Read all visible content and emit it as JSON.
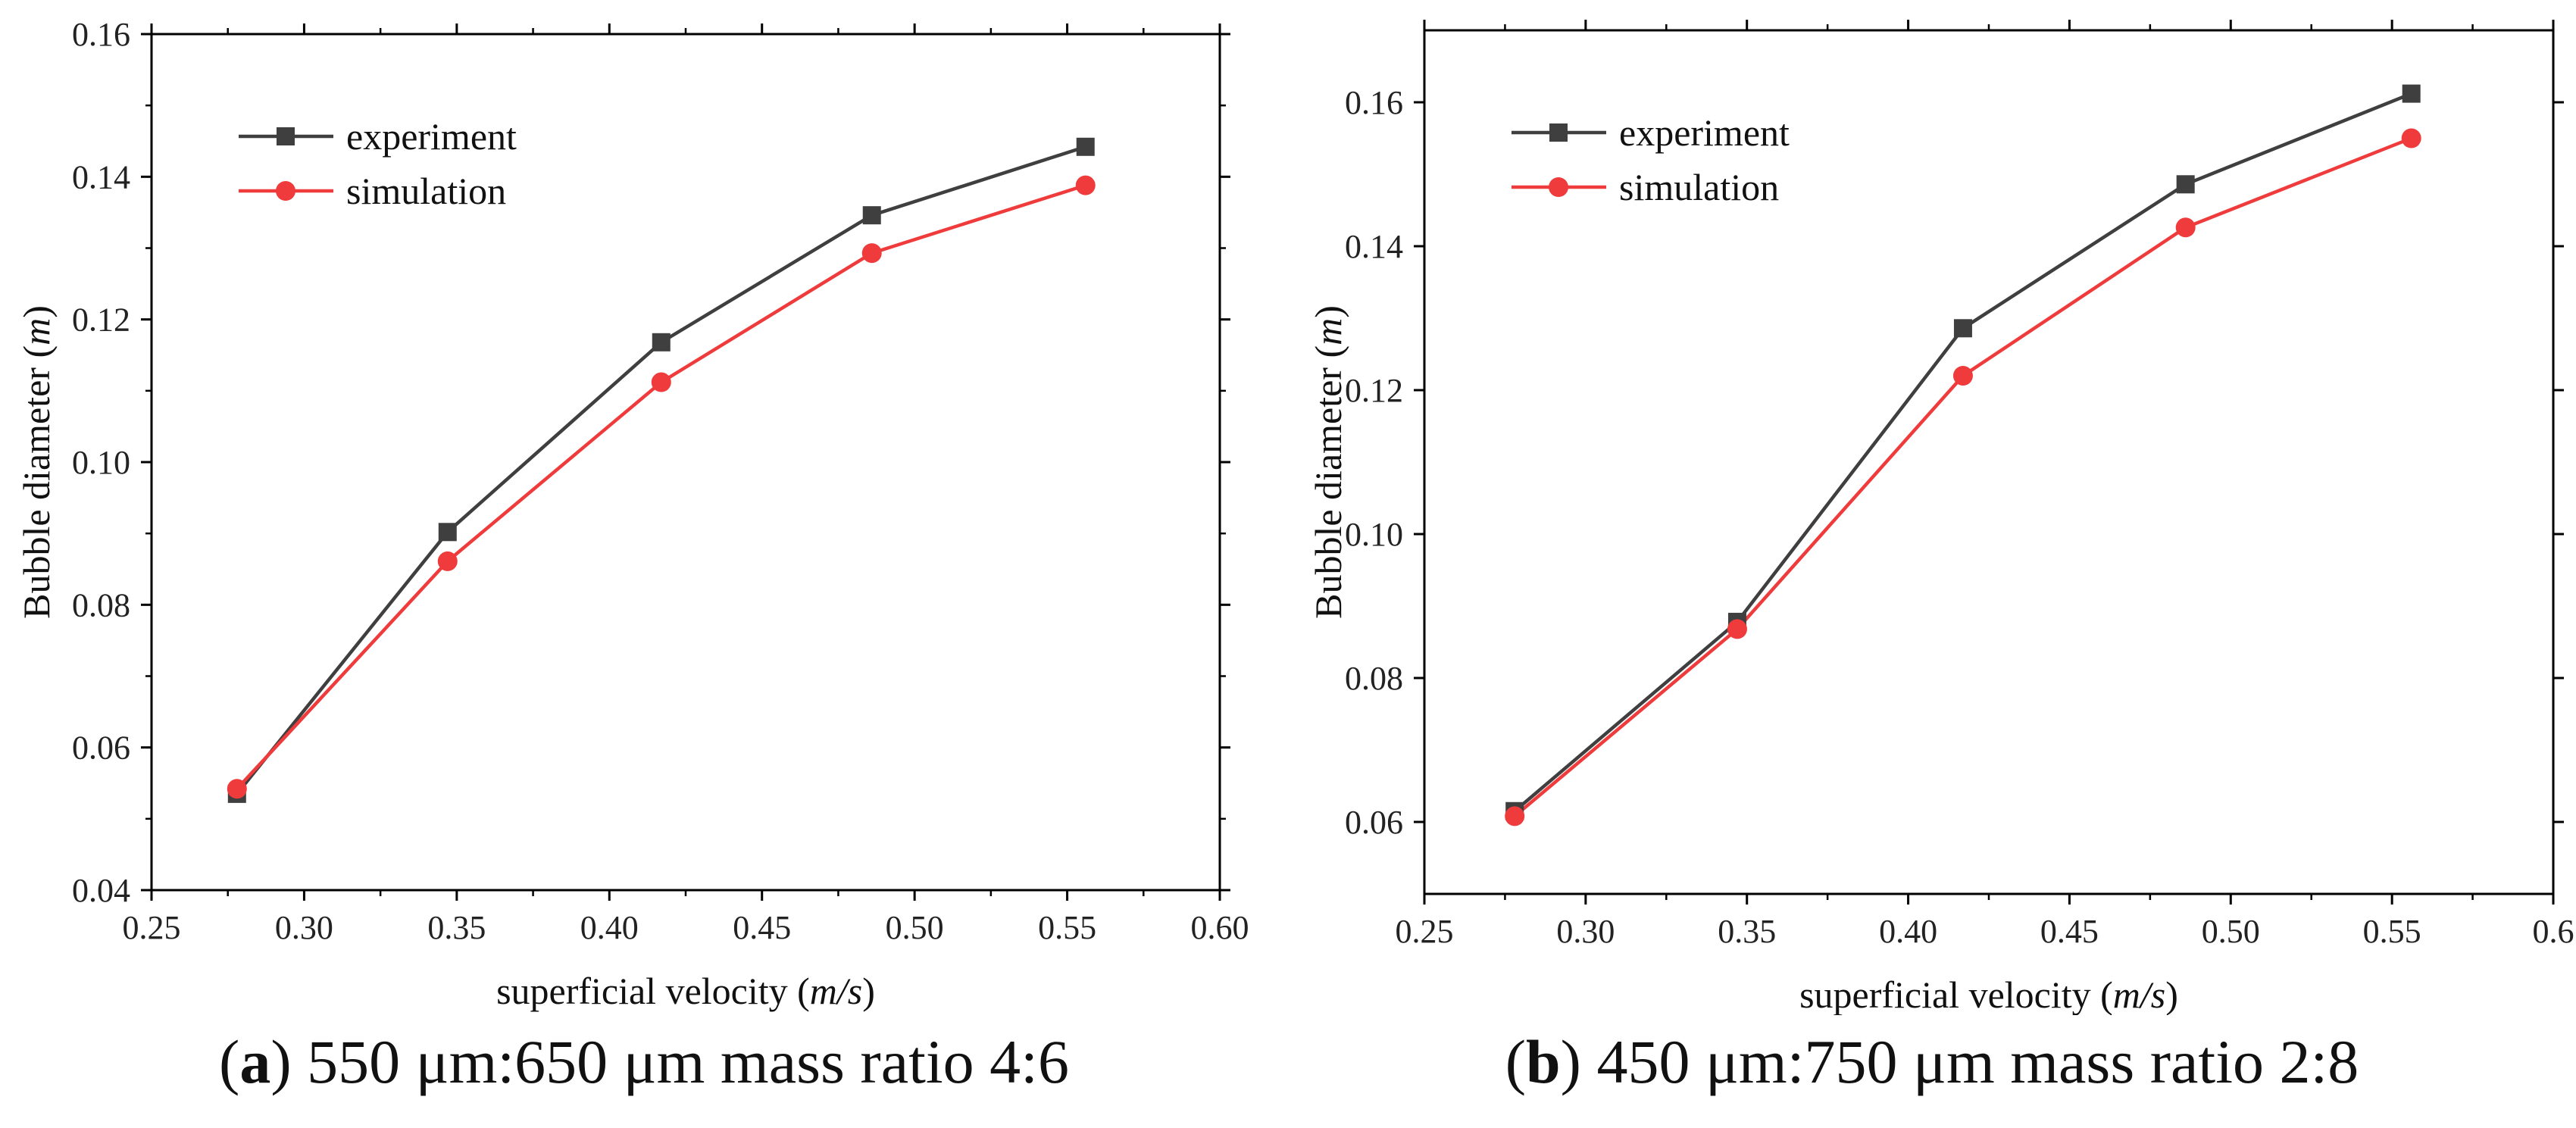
{
  "chart_data": [
    {
      "type": "line",
      "panel_label": "a",
      "caption_text": " 550 μm:650 μm mass ratio 4:6",
      "xlabel": "superficial velocity",
      "xlabel_unit": "m/s",
      "ylabel": "Bubble diameter",
      "ylabel_unit": "m",
      "xlim": [
        0.25,
        0.6
      ],
      "ylim": [
        0.04,
        0.16
      ],
      "xticks": [
        "0.25",
        "0.30",
        "0.35",
        "0.40",
        "0.45",
        "0.50",
        "0.55",
        "0.60"
      ],
      "yticks": [
        "0.04",
        "0.06",
        "0.08",
        "0.10",
        "0.12",
        "0.14",
        "0.16"
      ],
      "legend_position": "top-left",
      "x": [
        0.278,
        0.347,
        0.417,
        0.486,
        0.556
      ],
      "series": [
        {
          "name": "experiment",
          "marker": "square",
          "color": "#3f3f3f",
          "values": [
            0.0535,
            0.0902,
            0.1168,
            0.1346,
            0.1442
          ]
        },
        {
          "name": "simulation",
          "marker": "circle",
          "color": "#ef3b3b",
          "values": [
            0.0542,
            0.0861,
            0.1112,
            0.1293,
            0.1388
          ]
        }
      ]
    },
    {
      "type": "line",
      "panel_label": "b",
      "caption_text": " 450 μm:750 μm mass ratio 2:8",
      "xlabel": "superficial velocity",
      "xlabel_unit": "m/s",
      "ylabel": "Bubble diameter",
      "ylabel_unit": "m",
      "xlim": [
        0.25,
        0.6
      ],
      "ylim": [
        0.05,
        0.17
      ],
      "xticks": [
        "0.25",
        "0.30",
        "0.35",
        "0.40",
        "0.45",
        "0.50",
        "0.55",
        "0.6"
      ],
      "yticks": [
        "0.06",
        "0.08",
        "0.10",
        "0.12",
        "0.14",
        "0.16"
      ],
      "legend_position": "top-left",
      "x": [
        0.278,
        0.347,
        0.417,
        0.486,
        0.556
      ],
      "series": [
        {
          "name": "experiment",
          "marker": "square",
          "color": "#3f3f3f",
          "values": [
            0.0615,
            0.0878,
            0.1286,
            0.1486,
            0.1612
          ]
        },
        {
          "name": "simulation",
          "marker": "circle",
          "color": "#ef3b3b",
          "values": [
            0.0608,
            0.0868,
            0.122,
            0.1426,
            0.155
          ]
        }
      ]
    }
  ]
}
